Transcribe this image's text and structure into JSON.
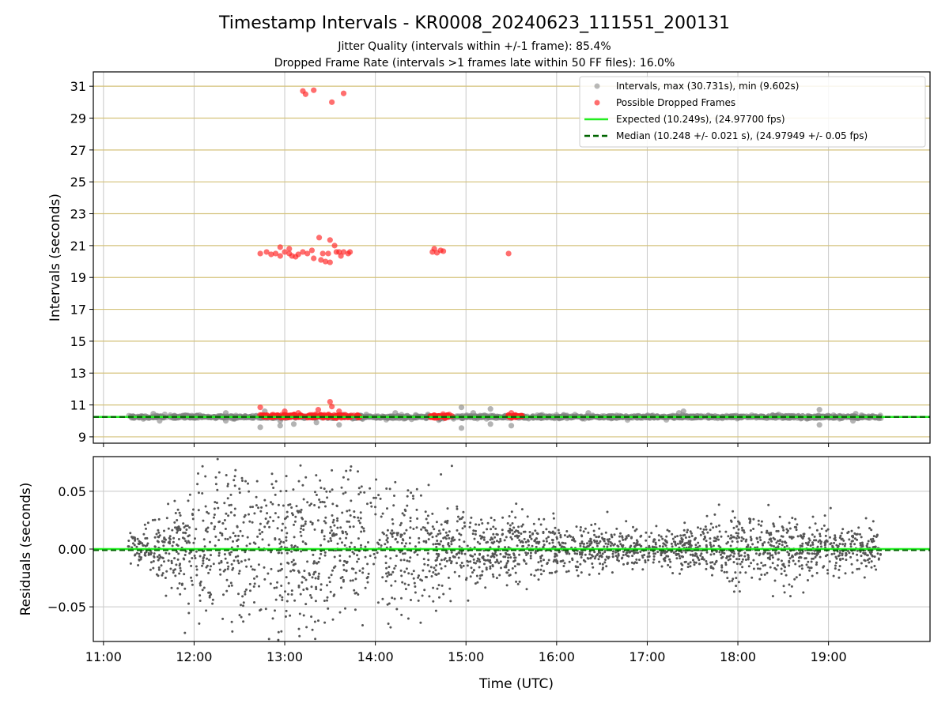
{
  "chart_data": {
    "type": "scatter",
    "title": "Timestamp Intervals - KR0008_20240623_111551_200131",
    "subtitle_lines": [
      "Jitter Quality (intervals within +/-1 frame): 85.4%",
      "Dropped Frame Rate (intervals >1 frames late within 50 FF files): 16.0%"
    ],
    "x_ticks": [
      "11:00",
      "12:00",
      "13:00",
      "14:00",
      "15:00",
      "16:00",
      "17:00",
      "18:00",
      "19:00"
    ],
    "xlabel": "Time (UTC)",
    "top_panel": {
      "ylabel": "Intervals (seconds)",
      "ylim": [
        8.6,
        31.9
      ],
      "y_ticks": [
        9,
        11,
        13,
        15,
        17,
        19,
        21,
        23,
        25,
        27,
        29,
        31
      ],
      "grid": "horizontal gold lines and vertical grey lines",
      "legend_placement": "upper right",
      "legend": [
        "Intervals, max (30.731s), min (9.602s)",
        "Possible Dropped Frames",
        "Expected (10.249s), (24.97700 fps)",
        "Median (10.248 +/- 0.021 s), (24.97949 +/- 0.05 fps)"
      ],
      "expected_value": 10.249,
      "median_value": 10.248,
      "interval_range_hours": [
        11.27,
        19.58
      ],
      "interval_max": 30.731,
      "interval_min": 9.602,
      "gray_outliers": [
        {
          "x": 11.55,
          "y": 10.45
        },
        {
          "x": 11.62,
          "y": 10.0
        },
        {
          "x": 11.9,
          "y": 10.35
        },
        {
          "x": 12.35,
          "y": 10.5
        },
        {
          "x": 12.35,
          "y": 10.0
        },
        {
          "x": 12.73,
          "y": 9.6
        },
        {
          "x": 12.78,
          "y": 10.6
        },
        {
          "x": 12.95,
          "y": 10.0
        },
        {
          "x": 12.95,
          "y": 9.7
        },
        {
          "x": 13.1,
          "y": 9.8
        },
        {
          "x": 13.35,
          "y": 9.9
        },
        {
          "x": 13.6,
          "y": 9.75
        },
        {
          "x": 13.9,
          "y": 10.4
        },
        {
          "x": 14.22,
          "y": 10.5
        },
        {
          "x": 14.4,
          "y": 10.1
        },
        {
          "x": 14.58,
          "y": 10.4
        },
        {
          "x": 14.7,
          "y": 10.05
        },
        {
          "x": 14.95,
          "y": 10.85
        },
        {
          "x": 14.95,
          "y": 9.55
        },
        {
          "x": 15.08,
          "y": 10.5
        },
        {
          "x": 15.27,
          "y": 10.75
        },
        {
          "x": 15.27,
          "y": 9.8
        },
        {
          "x": 15.5,
          "y": 9.7
        },
        {
          "x": 16.35,
          "y": 10.5
        },
        {
          "x": 17.35,
          "y": 10.5
        },
        {
          "x": 17.4,
          "y": 10.6
        },
        {
          "x": 18.45,
          "y": 10.4
        },
        {
          "x": 18.9,
          "y": 10.7
        },
        {
          "x": 18.9,
          "y": 9.75
        },
        {
          "x": 19.27,
          "y": 10.0
        },
        {
          "x": 19.3,
          "y": 10.45
        }
      ],
      "dropped_frames": [
        {
          "x": 12.73,
          "y": 20.5
        },
        {
          "x": 12.8,
          "y": 20.6
        },
        {
          "x": 12.85,
          "y": 20.45
        },
        {
          "x": 12.9,
          "y": 20.5
        },
        {
          "x": 12.95,
          "y": 20.35
        },
        {
          "x": 12.95,
          "y": 20.9
        },
        {
          "x": 13.0,
          "y": 20.6
        },
        {
          "x": 13.05,
          "y": 20.5
        },
        {
          "x": 13.05,
          "y": 20.8
        },
        {
          "x": 13.08,
          "y": 20.35
        },
        {
          "x": 13.12,
          "y": 20.3
        },
        {
          "x": 13.15,
          "y": 20.45
        },
        {
          "x": 13.2,
          "y": 20.6
        },
        {
          "x": 13.25,
          "y": 20.5
        },
        {
          "x": 13.3,
          "y": 20.7
        },
        {
          "x": 13.32,
          "y": 20.2
        },
        {
          "x": 13.38,
          "y": 21.5
        },
        {
          "x": 13.4,
          "y": 20.1
        },
        {
          "x": 13.42,
          "y": 20.5
        },
        {
          "x": 13.45,
          "y": 20.0
        },
        {
          "x": 13.48,
          "y": 20.5
        },
        {
          "x": 13.5,
          "y": 21.35
        },
        {
          "x": 13.5,
          "y": 19.95
        },
        {
          "x": 13.55,
          "y": 21.0
        },
        {
          "x": 13.57,
          "y": 20.6
        },
        {
          "x": 13.6,
          "y": 20.6
        },
        {
          "x": 13.62,
          "y": 20.35
        },
        {
          "x": 13.65,
          "y": 20.6
        },
        {
          "x": 13.7,
          "y": 20.5
        },
        {
          "x": 13.72,
          "y": 20.6
        },
        {
          "x": 13.2,
          "y": 30.7
        },
        {
          "x": 13.23,
          "y": 30.5
        },
        {
          "x": 13.32,
          "y": 30.75
        },
        {
          "x": 13.52,
          "y": 30.0
        },
        {
          "x": 13.65,
          "y": 30.55
        },
        {
          "x": 14.63,
          "y": 20.6
        },
        {
          "x": 14.65,
          "y": 20.8
        },
        {
          "x": 14.68,
          "y": 20.55
        },
        {
          "x": 14.72,
          "y": 20.7
        },
        {
          "x": 14.75,
          "y": 20.65
        },
        {
          "x": 15.47,
          "y": 20.5
        },
        {
          "x": 12.73,
          "y": 10.85
        },
        {
          "x": 13.0,
          "y": 10.6
        },
        {
          "x": 13.15,
          "y": 10.5
        },
        {
          "x": 13.37,
          "y": 10.7
        },
        {
          "x": 13.5,
          "y": 11.2
        },
        {
          "x": 13.52,
          "y": 10.9
        },
        {
          "x": 13.6,
          "y": 10.6
        },
        {
          "x": 15.5,
          "y": 10.5
        }
      ],
      "dropped_frame_clusters_near_median_hours": [
        [
          12.72,
          13.83
        ],
        [
          14.6,
          14.85
        ],
        [
          15.45,
          15.62
        ]
      ]
    },
    "bottom_panel": {
      "ylabel": "Residuals (seconds)",
      "ylim": [
        -0.08,
        0.08
      ],
      "y_ticks": [
        "0.05",
        "0.00",
        "−0.05"
      ],
      "y_tick_values": [
        0.05,
        0.0,
        -0.05
      ],
      "grid": "light grey both axes",
      "expected_line": 0.0,
      "median_line": -0.001,
      "residual_spread_by_hour": [
        {
          "x": 11.3,
          "sd": 0.008
        },
        {
          "x": 11.6,
          "sd": 0.011
        },
        {
          "x": 12.0,
          "sd": 0.03
        },
        {
          "x": 12.5,
          "sd": 0.038
        },
        {
          "x": 13.0,
          "sd": 0.044
        },
        {
          "x": 13.5,
          "sd": 0.038
        },
        {
          "x": 14.0,
          "sd": 0.03
        },
        {
          "x": 14.5,
          "sd": 0.024
        },
        {
          "x": 15.0,
          "sd": 0.017
        },
        {
          "x": 15.5,
          "sd": 0.014
        },
        {
          "x": 16.0,
          "sd": 0.011
        },
        {
          "x": 16.5,
          "sd": 0.009
        },
        {
          "x": 17.0,
          "sd": 0.008
        },
        {
          "x": 17.5,
          "sd": 0.01
        },
        {
          "x": 18.0,
          "sd": 0.015
        },
        {
          "x": 18.5,
          "sd": 0.013
        },
        {
          "x": 19.0,
          "sd": 0.011
        },
        {
          "x": 19.6,
          "sd": 0.009
        }
      ]
    },
    "colors": {
      "interval_points": "#808080",
      "dropped_points": "#ff2020",
      "expected_line": "#22ee22",
      "median_line": "#006400",
      "residual_points": "#555555",
      "h_grid_top": "#d4c27a",
      "grid": "#c8c8c8"
    }
  }
}
